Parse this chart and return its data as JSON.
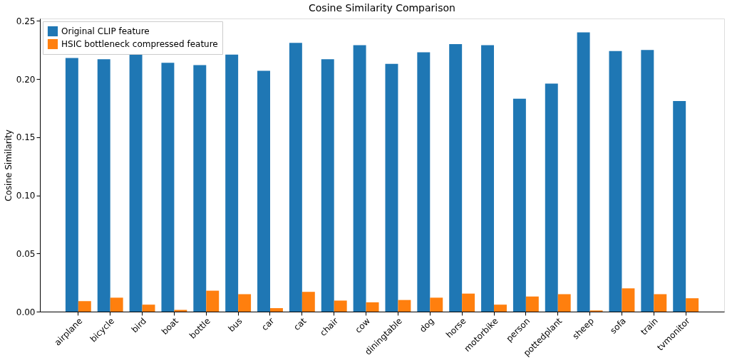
{
  "chart_data": {
    "type": "bar",
    "title": "Cosine Similarity Comparison",
    "ylabel": "Cosine Similarity",
    "categories": [
      "airplane",
      "bicycle",
      "bird",
      "boat",
      "bottle",
      "bus",
      "car",
      "cat",
      "chair",
      "cow",
      "diningtable",
      "dog",
      "horse",
      "motorbike",
      "person",
      "pottedplant",
      "sheep",
      "sofa",
      "train",
      "tvmonitor"
    ],
    "series": [
      {
        "name": "Original CLIP feature",
        "color": "#1f77b4",
        "values": [
          0.218,
          0.217,
          0.222,
          0.214,
          0.212,
          0.221,
          0.207,
          0.231,
          0.217,
          0.229,
          0.213,
          0.223,
          0.23,
          0.229,
          0.183,
          0.196,
          0.24,
          0.224,
          0.225,
          0.181
        ]
      },
      {
        "name": " HSIC bottleneck compressed feature",
        "color": "#ff7f0e",
        "values": [
          0.009,
          0.012,
          0.006,
          0.0015,
          0.018,
          0.015,
          0.003,
          0.017,
          0.0095,
          0.008,
          0.01,
          0.012,
          0.0155,
          0.006,
          0.013,
          0.015,
          0.001,
          0.02,
          0.015,
          0.0115
        ]
      }
    ],
    "ylim": [
      0,
      0.252
    ],
    "yticks": [
      {
        "value": 0,
        "label": "0.00"
      },
      {
        "value": 0.05,
        "label": "0.05"
      },
      {
        "value": 0.1,
        "label": "0.10"
      },
      {
        "value": 0.15,
        "label": "0.15"
      },
      {
        "value": 0.2,
        "label": "0.20"
      },
      {
        "value": 0.25,
        "label": "0.25"
      }
    ],
    "grid": false,
    "legend": "top left"
  }
}
